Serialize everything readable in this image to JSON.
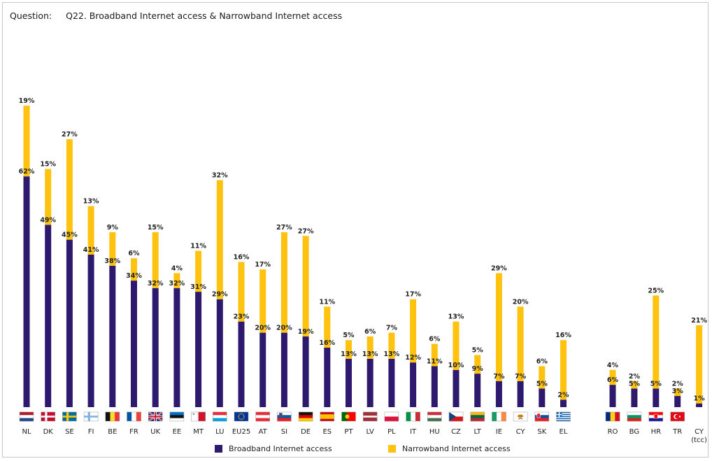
{
  "header": {
    "question_label": "Question:",
    "question_text": "Q22. Broadband Internet access & Narrowband Internet access"
  },
  "colors": {
    "broadband": "#2d1a6e",
    "narrowband": "#ffc20e"
  },
  "chart_data": {
    "type": "bar",
    "stacked": true,
    "title": "Q22. Broadband Internet access & Narrowband Internet access",
    "categories": [
      "NL",
      "DK",
      "SE",
      "FI",
      "BE",
      "FR",
      "UK",
      "EE",
      "MT",
      "LU",
      "EU25",
      "AT",
      "SI",
      "DE",
      "ES",
      "PT",
      "LV",
      "PL",
      "IT",
      "HU",
      "CZ",
      "LT",
      "IE",
      "CY",
      "SK",
      "EL",
      "RO",
      "BG",
      "HR",
      "TR",
      "CY (tcc)"
    ],
    "category_label_lines": [
      [
        "NL"
      ],
      [
        "DK"
      ],
      [
        "SE"
      ],
      [
        "FI"
      ],
      [
        "BE"
      ],
      [
        "FR"
      ],
      [
        "UK"
      ],
      [
        "EE"
      ],
      [
        "MT"
      ],
      [
        "LU"
      ],
      [
        "EU25"
      ],
      [
        "AT"
      ],
      [
        "SI"
      ],
      [
        "DE"
      ],
      [
        "ES"
      ],
      [
        "PT"
      ],
      [
        "LV"
      ],
      [
        "PL"
      ],
      [
        "IT"
      ],
      [
        "HU"
      ],
      [
        "CZ"
      ],
      [
        "LT"
      ],
      [
        "IE"
      ],
      [
        "CY"
      ],
      [
        "SK"
      ],
      [
        "EL"
      ],
      [
        "RO"
      ],
      [
        "BG"
      ],
      [
        "HR"
      ],
      [
        "TR"
      ],
      [
        "CY",
        "(tcc)"
      ]
    ],
    "flag_icons": [
      "flag-nl-icon",
      "flag-dk-icon",
      "flag-se-icon",
      "flag-fi-icon",
      "flag-be-icon",
      "flag-fr-icon",
      "flag-uk-icon",
      "flag-ee-icon",
      "flag-mt-icon",
      "flag-lu-icon",
      "flag-eu-icon",
      "flag-at-icon",
      "flag-si-icon",
      "flag-de-icon",
      "flag-es-icon",
      "flag-pt-icon",
      "flag-lv-icon",
      "flag-pl-icon",
      "flag-it-icon",
      "flag-hu-icon",
      "flag-cz-icon",
      "flag-lt-icon",
      "flag-ie-icon",
      "flag-cy-icon",
      "flag-sk-icon",
      "flag-el-icon",
      "flag-ro-icon",
      "flag-bg-icon",
      "flag-hr-icon",
      "flag-tr-icon",
      ""
    ],
    "series": [
      {
        "name": "Broadband Internet access",
        "values": [
          62,
          49,
          45,
          41,
          38,
          34,
          32,
          32,
          31,
          29,
          23,
          20,
          20,
          19,
          16,
          13,
          13,
          13,
          12,
          11,
          10,
          9,
          7,
          7,
          5,
          2,
          6,
          5,
          5,
          3,
          1
        ]
      },
      {
        "name": "Narrowband Internet access",
        "values": [
          19,
          15,
          27,
          13,
          9,
          6,
          15,
          4,
          11,
          32,
          16,
          17,
          27,
          27,
          11,
          5,
          6,
          7,
          17,
          6,
          13,
          5,
          29,
          20,
          6,
          16,
          4,
          2,
          25,
          2,
          21
        ]
      }
    ],
    "value_suffix": "%",
    "ylim": [
      0,
      90
    ],
    "grid": false,
    "legend_position": "bottom"
  }
}
